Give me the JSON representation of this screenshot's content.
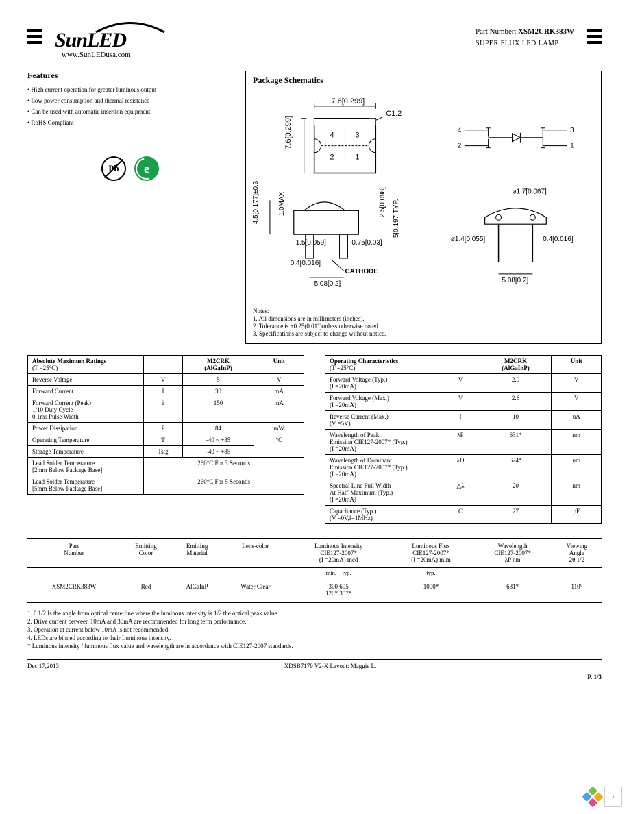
{
  "header": {
    "logo": "SunLED",
    "url": "www.SunLEDusa.com",
    "part_label": "Part Number:",
    "part_number": "XSM2CRK383W",
    "subtitle": "SUPER FLUX LED LAMP"
  },
  "features": {
    "title": "Features",
    "items": [
      "High current operation for greater luminous output",
      "Low power consumption and thermal resistance",
      "Can be used with automatic insertion equipment",
      "RoHS Compliant"
    ]
  },
  "schematics": {
    "title": "Package Schematics",
    "dims": {
      "top_w": "7.6[0.299]",
      "left_h": "7.6[0.299]",
      "chamfer": "C1.2",
      "pins": [
        "4",
        "3",
        "2",
        "1"
      ],
      "side_h": "4.5[0.177]±0.3",
      "dome_max": "1.0MAX",
      "lead_w": "1.5[0.059]",
      "lead_t": "0.4[0.016]",
      "pitch": "5.08[0.2]",
      "dome_h": "2.5[0.098]",
      "standoff": "5[0.197]TYP.",
      "gap": "0.75[0.03]",
      "cathode": "CATHODE",
      "pin_d1": "ø1.7[0.067]",
      "pin_d2": "ø1.4[0.055]",
      "pin_t": "0.4[0.016]"
    },
    "notes_title": "Notes:",
    "notes": [
      "1. All dimensions are in millimeters (inches).",
      "2. Tolerance is ±0.25(0.01\")unless otherwise noted.",
      "3. Specifications are subject to change without notice."
    ]
  },
  "abs_max": {
    "title": "Absolute Maximum Ratings",
    "cond": "(T  =25°C)",
    "chip_col": "M2CRK\n(AlGaInP)",
    "unit_col": "Unit",
    "rows": [
      {
        "param": "Reverse Voltage",
        "sym": "V",
        "val": "5",
        "unit": "V"
      },
      {
        "param": "Forward Current",
        "sym": "I",
        "val": "30",
        "unit": "mA"
      },
      {
        "param": "Forward Current (Peak)\n1/10 Duty Cycle\n0.1ms Pulse Width",
        "sym": "i",
        "val": "150",
        "unit": "mA"
      },
      {
        "param": "Power Dissipation",
        "sym": "P",
        "val": "84",
        "unit": "mW"
      },
      {
        "param": "Operating Temperature",
        "sym": "T",
        "val": "-40 ~ +85",
        "unit": "°C",
        "rowspan_unit": 2
      },
      {
        "param": "Storage Temperature",
        "sym": "Tstg",
        "val": "-40 ~ +85"
      },
      {
        "param": "Lead Solder Temperature\n[2mm Below Package Base]",
        "colspan_val": "260°C For 3 Seconds"
      },
      {
        "param": "Lead Solder Temperature\n[5mm Below Package Base]",
        "colspan_val": "260°C For 5 Seconds"
      }
    ]
  },
  "op_char": {
    "title": "Operating Characteristics",
    "cond": "(T  =25°C)",
    "chip_col": "M2CRK\n(AlGaInP)",
    "unit_col": "Unit",
    "rows": [
      {
        "param": "Forward Voltage (Typ.)\n(I  =20mA)",
        "sym": "V",
        "val": "2.0",
        "unit": "V"
      },
      {
        "param": "Forward Voltage (Max.)\n(I  =20mA)",
        "sym": "V",
        "val": "2.6",
        "unit": "V"
      },
      {
        "param": "Reverse Current (Max.)\n(V  =5V)",
        "sym": "I",
        "val": "10",
        "unit": "uA"
      },
      {
        "param": "Wavelength of Peak\nEmission CIE127-2007*        (Typ.)\n(I  =20mA)",
        "sym": "λP",
        "val": "631*",
        "unit": "nm"
      },
      {
        "param": "Wavelength of Dominant\nEmission CIE127-2007* (Typ.)\n(I  =20mA)",
        "sym": "λD",
        "val": "624*",
        "unit": "nm"
      },
      {
        "param": "Spectral Line Full Width\nAt Half-Maximum (Typ.)\n(I  =20mA)",
        "sym": "△λ",
        "val": "20",
        "unit": "nm"
      },
      {
        "param": "Capacitance (Typ.)\n(V  =0V,f=1MHz)",
        "sym": "C",
        "val": "27",
        "unit": "pF"
      }
    ]
  },
  "product": {
    "headers": [
      "Part\nNumber",
      "Emitting\nColor",
      "Emitting\nMaterial",
      "Lens-color",
      "Luminous Intensity\nCIE127-2007*\n(I  =20mA) mcd",
      "Luminous Flux\nCIE127-2007*\n(I  =20mA) mlm",
      "Wavelength\nCIE127-2007*\nλP nm",
      "Viewing\nAngle\n2θ 1/2"
    ],
    "sub": [
      "",
      "",
      "",
      "",
      "min.    typ.",
      "typ.",
      "",
      ""
    ],
    "row": [
      "XSM2CRK383W",
      "Red",
      "AlGaInP",
      "Water   Clear",
      "300      695\n120*    357*",
      "1000*",
      "631*",
      "110°"
    ]
  },
  "footnotes": [
    "1. θ 1/2 Is the angle from optical centerline where the luminous intensity is 1/2 the optical peak value.",
    "2. Drive current between 10mA and 30mA are recommended for long term performance.",
    "3. Operation at current below 10mA is not recommended.",
    "4. LEDs are binned according to their Luminous intensity.",
    "* Luminous intensity / luminous flux value and wavelength are in accordance with CIE127-2007 standards."
  ],
  "footer": {
    "date": "Dec 17,2013",
    "doc": "XDSB7179    V2-X    Layout: Maggie L.",
    "page": "P. 1/3"
  },
  "colors": {
    "nav_dots": [
      "#7cc242",
      "#f5a81c",
      "#4aa3df",
      "#e94b7a"
    ]
  }
}
